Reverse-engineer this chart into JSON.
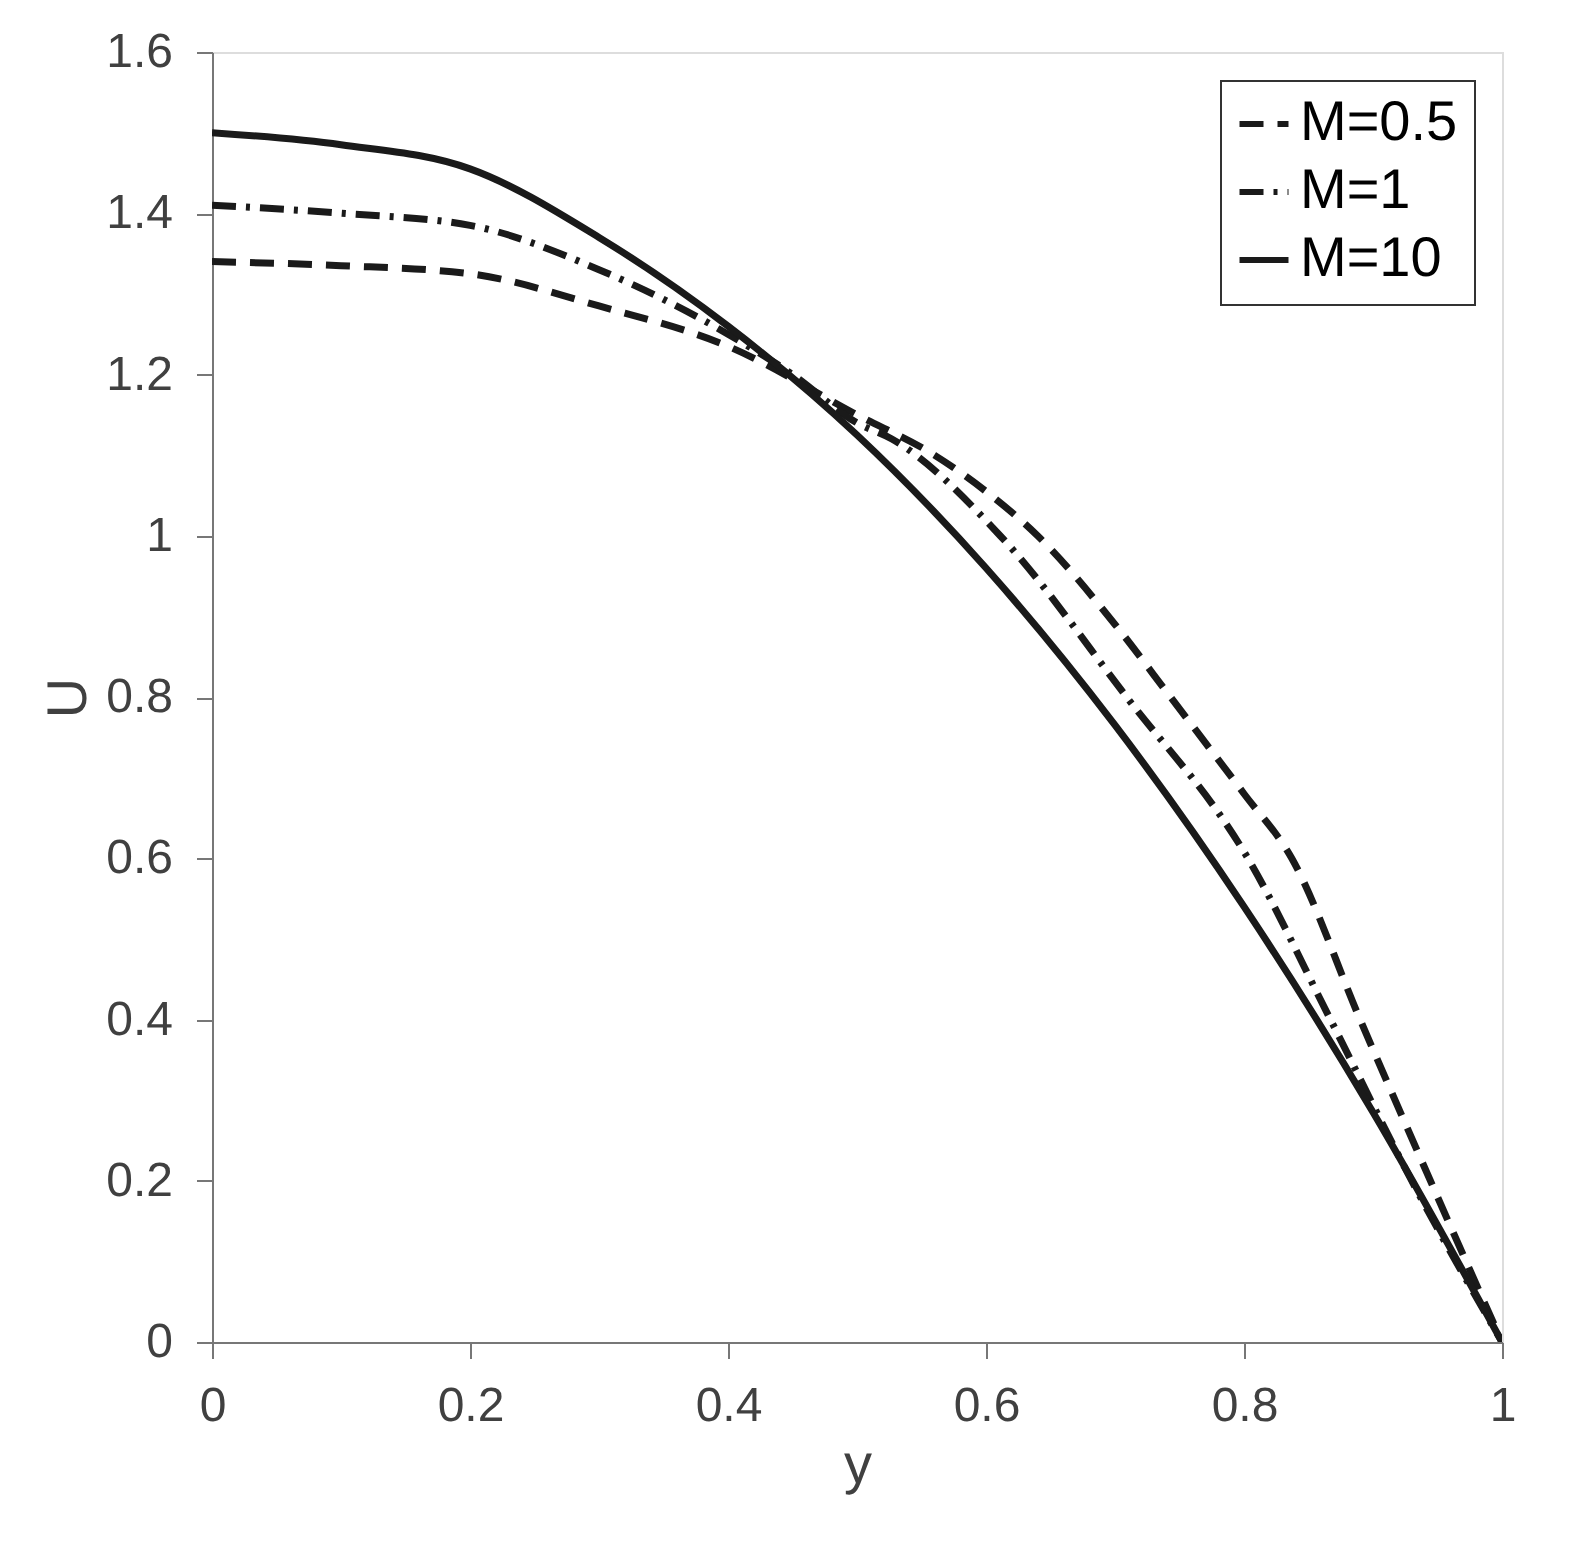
{
  "chart_data": {
    "type": "line",
    "xlabel": "y",
    "ylabel": "U",
    "xlim": [
      0,
      1
    ],
    "ylim": [
      0,
      1.6
    ],
    "xticks": [
      0,
      0.2,
      0.4,
      0.6,
      0.8,
      1
    ],
    "yticks": [
      0,
      0.2,
      0.4,
      0.6,
      0.8,
      1,
      1.2,
      1.4,
      1.6
    ],
    "grid": false,
    "legend": "top right",
    "marker": "none",
    "series": [
      {
        "name": "M=0.5",
        "color": "#1a1a1a",
        "line_style": "dashed",
        "x": [
          0,
          0.1,
          0.2,
          0.3,
          0.4,
          0.5,
          0.56,
          0.6,
          0.64,
          0.7,
          0.743,
          0.8,
          0.837,
          0.89,
          0.95,
          1
        ],
        "values": [
          1.34,
          1.335,
          1.325,
          1.285,
          1.235,
          1.15,
          1.1,
          1.055,
          1.0,
          0.89,
          0.8,
          0.68,
          0.6,
          0.4,
          0.18,
          0
        ]
      },
      {
        "name": "M=1",
        "color": "#1a1a1a",
        "line_style": "dashdot",
        "x": [
          0,
          0.1,
          0.2,
          0.3,
          0.4,
          0.45,
          0.5,
          0.527,
          0.611,
          0.709,
          0.803,
          0.867,
          0.93,
          1
        ],
        "values": [
          1.41,
          1.4,
          1.385,
          1.33,
          1.25,
          1.2,
          1.14,
          1.12,
          1.0,
          0.8,
          0.6,
          0.4,
          0.2,
          0
        ]
      },
      {
        "name": "M=10",
        "color": "#1a1a1a",
        "line_style": "solid",
        "x": [
          0,
          0.1,
          0.2,
          0.3,
          0.4,
          0.5,
          0.6,
          0.7,
          0.8,
          0.9,
          1
        ],
        "values": [
          1.5,
          1.485,
          1.455,
          1.37,
          1.26,
          1.125,
          0.96,
          0.765,
          0.54,
          0.285,
          0
        ]
      }
    ]
  }
}
